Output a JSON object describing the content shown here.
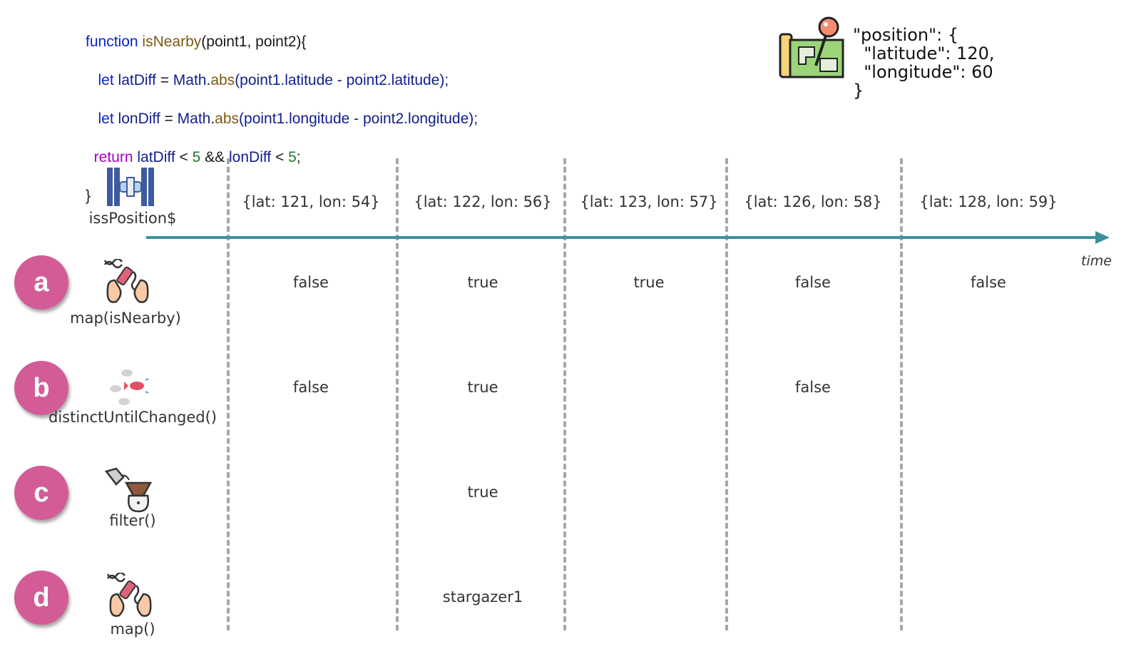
{
  "code": {
    "line1": {
      "kw": "function",
      "name": "isNearby",
      "rest": "(point1, point2){"
    },
    "line2": {
      "kw": "let",
      "var": "latDiff",
      "eq": " = ",
      "obj": "Math",
      "dot": ".",
      "fn": "abs",
      "args": "(point1.latitude - point2.latitude);"
    },
    "line3": {
      "kw": "let",
      "var": "lonDiff",
      "eq": " = ",
      "obj": "Math",
      "dot": ".",
      "fn": "abs",
      "args": "(point1.longitude - point2.longitude);"
    },
    "line4": {
      "kw": "return",
      "a": "latDiff",
      "lt1": " < ",
      "n1": "5",
      "and": " && ",
      "b": "lonDiff",
      "lt2": " < ",
      "n2": "5",
      "end": ";"
    },
    "line5": "}"
  },
  "json_snippet": "\"position\": {\n  \"latitude\": 120,\n  \"longitude\": 60\n}",
  "time_label": "time",
  "stream": {
    "label": "issPosition$",
    "icon": "space-station-icon",
    "values": [
      "{lat: 121, lon: 54}",
      "{lat: 122, lon: 56}",
      "{lat: 123, lon: 57}",
      "{lat: 126, lon: 58}",
      "{lat: 128, lon: 59}"
    ]
  },
  "rows": [
    {
      "badge": "a",
      "label": "map(isNearby)",
      "icon": "dna-hands-icon",
      "values": [
        "false",
        "true",
        "true",
        "false",
        "false"
      ]
    },
    {
      "badge": "b",
      "label": "distinctUntilChanged()",
      "icon": "fish-school-icon",
      "values": [
        "false",
        "true",
        "",
        "false",
        ""
      ]
    },
    {
      "badge": "c",
      "label": "filter()",
      "icon": "coffee-filter-icon",
      "values": [
        "",
        "true",
        "",
        "",
        ""
      ]
    },
    {
      "badge": "d",
      "label": "map()",
      "icon": "dna-hands-icon",
      "values": [
        "",
        "stargazer1",
        "",
        "",
        ""
      ]
    }
  ],
  "colors": {
    "axis": "#3f8fa0",
    "badge": "#d35c97",
    "divider": "#a7a7a7"
  }
}
